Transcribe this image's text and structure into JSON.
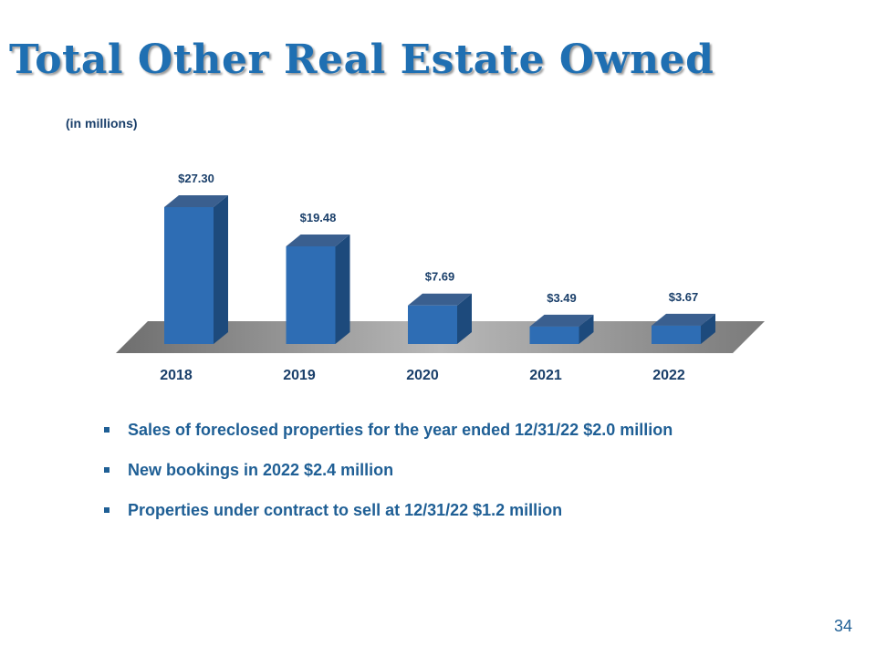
{
  "slide": {
    "title": "Total Other Real Estate Owned",
    "units": "(in millions)",
    "page_number": "34"
  },
  "bullets": [
    "Sales of foreclosed properties for the year ended 12/31/22 $2.0 million",
    "New bookings in 2022 $2.4 million",
    "Properties under contract to sell at 12/31/22 $1.2 million"
  ],
  "colors": {
    "title": "#1f6fb2",
    "bar_front": "#2e6db4",
    "bar_side": "#1d4a7c",
    "bar_top": "#3a5f8f",
    "floor": "#b8b8b8",
    "text": "#1a3f6a"
  },
  "chart_data": {
    "type": "bar",
    "categories": [
      "2018",
      "2019",
      "2020",
      "2021",
      "2022"
    ],
    "values": [
      27.3,
      19.48,
      7.69,
      3.49,
      3.67
    ],
    "data_labels": [
      "$27.30",
      "$19.48",
      "$7.69",
      "$3.49",
      "$3.67"
    ],
    "title": "",
    "xlabel": "",
    "ylabel": "",
    "style": "3d-column",
    "grid": false,
    "legend": false
  }
}
